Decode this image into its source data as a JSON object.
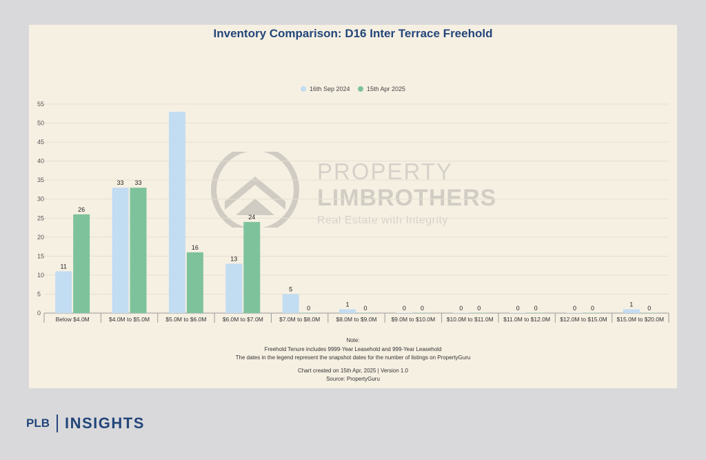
{
  "chart_data": {
    "type": "bar",
    "title": "Inventory Comparison: D16 Inter Terrace Freehold",
    "categories": [
      "Below $4.0M",
      "$4.0M to $5.0M",
      "$5.0M to $6.0M",
      "$6.0M to $7.0M",
      "$7.0M to $8.0M",
      "$8.0M to $9.0M",
      "$9.0M to $10.0M",
      "$10.0M to $11.0M",
      "$11.0M to $12.0M",
      "$12.0M to $15.0M",
      "$15.0M to $20.0M"
    ],
    "series": [
      {
        "name": "16th Sep 2024",
        "values": [
          11,
          33,
          53,
          13,
          5,
          1,
          0,
          0,
          0,
          0,
          1
        ],
        "labels": [
          "11",
          "33",
          "",
          "13",
          "5",
          "1",
          "0",
          "0",
          "0",
          "0",
          "1"
        ],
        "color": "#c2dcf2"
      },
      {
        "name": "15th Apr 2025",
        "values": [
          26,
          33,
          16,
          24,
          0,
          0,
          0,
          0,
          0,
          0,
          0
        ],
        "labels": [
          "26",
          "33",
          "16",
          "24",
          "0",
          "0",
          "0",
          "0",
          "0",
          "0",
          "0"
        ],
        "color": "#7ec29c"
      }
    ],
    "yticks": [
      0,
      5,
      10,
      15,
      20,
      25,
      30,
      35,
      40,
      45,
      50,
      55
    ],
    "ylim": [
      0,
      55
    ],
    "grid": true,
    "legend_position": "top-center"
  },
  "notes": {
    "heading": "Note:",
    "line1": "Freehold Tenure includes 9999-Year Leasehold and 999-Year Leasehold",
    "line2": "The dates in the legend represent the snapshot dates for the number of listings on PropertyGuru",
    "created": "Chart created on 15th Apr, 2025 | Version 1.0",
    "source": "Source: PropertyGuru"
  },
  "watermark": {
    "line1": "PROPERTY",
    "line2": "LIMBROTHERS",
    "tagline": "Real Estate with Integrity",
    "icon": "plb-house-logo-icon"
  },
  "brand": {
    "plb": "PLB",
    "insights": "INSIGHTS",
    "color": "#23467a"
  }
}
